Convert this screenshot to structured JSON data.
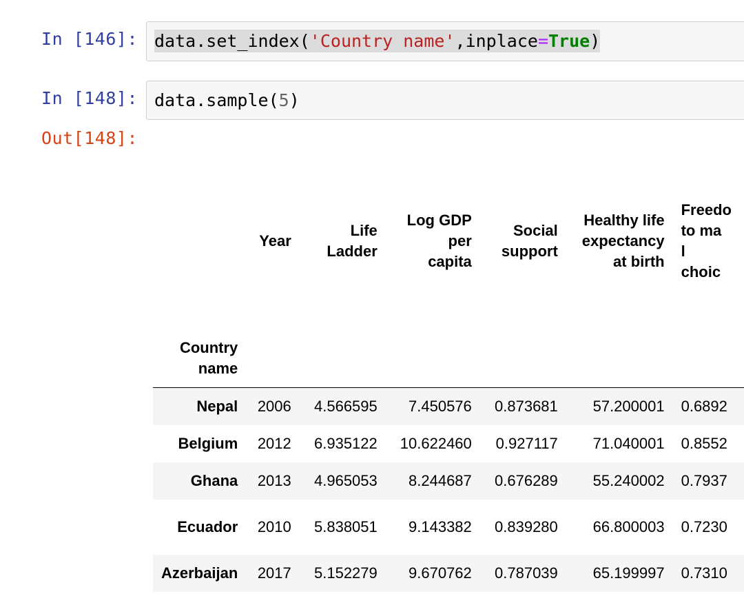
{
  "cells": [
    {
      "prompt": "In [146]:",
      "code": {
        "obj": "data",
        "method": ".set_index(",
        "str": "'Country name'",
        "sep": ",inplace",
        "op": "=",
        "kw": "True",
        "close": ")"
      }
    },
    {
      "prompt": "In [148]:",
      "code": {
        "obj": "data",
        "method": ".sample(",
        "num": "5",
        "close": ")"
      }
    }
  ],
  "output_prompt": "Out[148]:",
  "dataframe": {
    "columns": [
      {
        "label": "Year",
        "lines": [
          "Year"
        ]
      },
      {
        "label": "Life Ladder",
        "lines": [
          "Life",
          "Ladder"
        ]
      },
      {
        "label": "Log GDP per capita",
        "lines": [
          "Log GDP",
          "per",
          "capita"
        ]
      },
      {
        "label": "Social support",
        "lines": [
          "Social",
          "support"
        ]
      },
      {
        "label": "Healthy life expectancy at birth",
        "lines": [
          "Healthy life",
          "expectancy",
          "at birth"
        ]
      },
      {
        "label": "Freedo to ma l choic",
        "lines": [
          "Freedo",
          "to ma",
          "l",
          "choic"
        ]
      }
    ],
    "index_name": [
      "Country",
      "name"
    ],
    "rows": [
      {
        "index": "Nepal",
        "values": [
          "2006",
          "4.566595",
          "7.450576",
          "0.873681",
          "57.200001",
          "0.6892"
        ]
      },
      {
        "index": "Belgium",
        "values": [
          "2012",
          "6.935122",
          "10.622460",
          "0.927117",
          "71.040001",
          "0.8552"
        ]
      },
      {
        "index": "Ghana",
        "values": [
          "2013",
          "4.965053",
          "8.244687",
          "0.676289",
          "55.240002",
          "0.7937"
        ]
      },
      {
        "index": "Ecuador",
        "values": [
          "2010",
          "5.838051",
          "9.143382",
          "0.839280",
          "66.800003",
          "0.7230"
        ]
      },
      {
        "index": "Azerbaijan",
        "values": [
          "2017",
          "5.152279",
          "9.670762",
          "0.787039",
          "65.199997",
          "0.7310"
        ]
      }
    ]
  }
}
